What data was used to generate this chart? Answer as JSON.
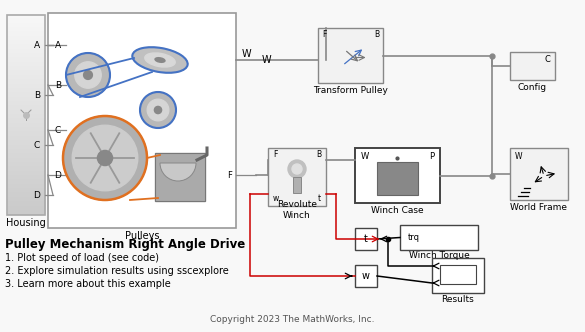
{
  "title": "Pulley Mechanism Right Angle Drive",
  "bullets": [
    "1. Plot speed of load (see code)",
    "2. Explore simulation results using sscexplore",
    "3. Learn more about this example"
  ],
  "copyright": "Copyright 2023 The MathWorks, Inc.",
  "bg": "#f8f8f8",
  "gray": "#888888",
  "dgray": "#555555",
  "red": "#cc0000",
  "blue": "#4472c4",
  "orange": "#e07020",
  "black": "#000000",
  "housing_label": "Housing",
  "pulleys_label": "Pulleys",
  "tp_label": "Transform Pulley",
  "rw_label": "Revolute\nWinch",
  "wc_label": "Winch Case",
  "wt_label": "Winch Torque",
  "res_label": "Results",
  "cfg_label": "Config",
  "wf_label": "World Frame"
}
